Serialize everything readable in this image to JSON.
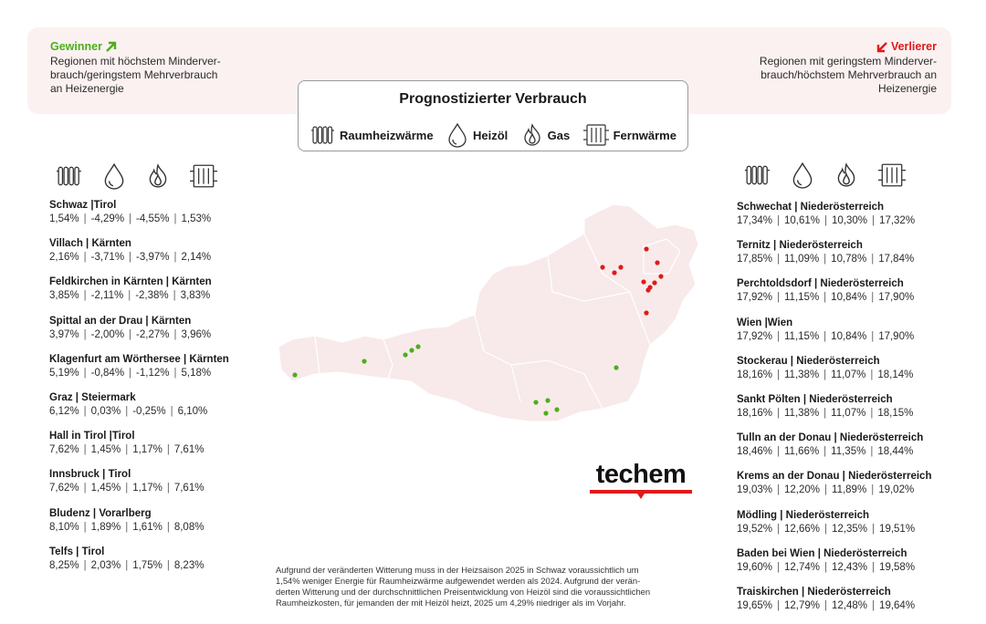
{
  "winner": {
    "title": "Gewinner",
    "description_lines": [
      "Regionen mit höchstem Minderver-",
      "brauch/geringstem Mehrverbrauch",
      "an Heizenergie"
    ]
  },
  "loser": {
    "title": "Verlierer",
    "description_lines": [
      "Regionen mit geringstem Minderver-",
      "brauch/höchstem Mehrverbrauch an",
      "Heizenergie"
    ]
  },
  "legend": {
    "title": "Prognostizierter Verbrauch",
    "items": [
      {
        "icon": "radiator-icon",
        "label": "Raumheizwärme"
      },
      {
        "icon": "oil-drop-icon",
        "label": "Heizöl"
      },
      {
        "icon": "gas-flame-icon",
        "label": "Gas"
      },
      {
        "icon": "district-heating-icon",
        "label": "Fernwärme"
      }
    ]
  },
  "colors": {
    "green": "#4caf1c",
    "red": "#e01a1a",
    "map_fill": "#f8eaea",
    "band": "#fbf1f1"
  },
  "winners_list": [
    {
      "name": "Schwaz |Tirol",
      "values": [
        "1,54%",
        "-4,29%",
        "-4,55%",
        "1,53%"
      ]
    },
    {
      "name": "Villach | Kärnten",
      "values": [
        "2,16%",
        "-3,71%",
        "-3,97%",
        "2,14%"
      ]
    },
    {
      "name": "Feldkirchen in Kärnten | Kärnten",
      "values": [
        "3,85%",
        "-2,11%",
        "-2,38%",
        "3,83%"
      ]
    },
    {
      "name": "Spittal an der Drau | Kärnten",
      "values": [
        "3,97%",
        "-2,00%",
        "-2,27%",
        "3,96%"
      ]
    },
    {
      "name": "Klagenfurt am Wörthersee | Kärnten",
      "values": [
        "5,19%",
        "-0,84%",
        "-1,12%",
        "5,18%"
      ]
    },
    {
      "name": "Graz | Steiermark",
      "values": [
        "6,12%",
        "0,03%",
        "-0,25%",
        "6,10%"
      ]
    },
    {
      "name": "Hall in Tirol |Tirol",
      "values": [
        "7,62%",
        "1,45%",
        "1,17%",
        "7,61%"
      ]
    },
    {
      "name": "Innsbruck | Tirol",
      "values": [
        "7,62%",
        "1,45%",
        "1,17%",
        "7,61%"
      ]
    },
    {
      "name": "Bludenz | Vorarlberg",
      "values": [
        "8,10%",
        "1,89%",
        "1,61%",
        "8,08%"
      ]
    },
    {
      "name": "Telfs | Tirol",
      "values": [
        "8,25%",
        "2,03%",
        "1,75%",
        "8,23%"
      ]
    }
  ],
  "losers_list": [
    {
      "name": "Schwechat | Niederösterreich",
      "values": [
        "17,34%",
        "10,61%",
        "10,30%",
        "17,32%"
      ]
    },
    {
      "name": "Ternitz | Niederösterreich",
      "values": [
        "17,85%",
        "11,09%",
        "10,78%",
        "17,84%"
      ]
    },
    {
      "name": "Perchtoldsdorf | Niederösterreich",
      "values": [
        "17,92%",
        "11,15%",
        "10,84%",
        "17,90%"
      ]
    },
    {
      "name": "Wien |Wien",
      "values": [
        "17,92%",
        "11,15%",
        "10,84%",
        "17,90%"
      ]
    },
    {
      "name": "Stockerau | Niederösterreich",
      "values": [
        "18,16%",
        "11,38%",
        "11,07%",
        "18,14%"
      ]
    },
    {
      "name": "Sankt Pölten | Niederösterreich",
      "values": [
        "18,16%",
        "11,38%",
        "11,07%",
        "18,15%"
      ]
    },
    {
      "name": "Tulln an der Donau | Niederösterreich",
      "values": [
        "18,46%",
        "11,66%",
        "11,35%",
        "18,44%"
      ]
    },
    {
      "name": "Krems an der Donau | Niederösterreich",
      "values": [
        "19,03%",
        "12,20%",
        "11,89%",
        "19,02%"
      ]
    },
    {
      "name": "Mödling | Niederösterreich",
      "values": [
        "19,52%",
        "12,66%",
        "12,35%",
        "19,51%"
      ]
    },
    {
      "name": "Baden bei Wien | Niederösterreich",
      "values": [
        "19,60%",
        "12,74%",
        "12,43%",
        "19,58%"
      ]
    },
    {
      "name": "Traiskirchen | Niederösterreich",
      "values": [
        "19,65%",
        "12,79%",
        "12,48%",
        "19,64%"
      ]
    }
  ],
  "logo": {
    "text": "techem"
  },
  "footnote": {
    "lines": [
      "Aufgrund der veränderten Witterung muss in der Heizsaison 2025 in Schwaz voraussichtlich um",
      "1,54% weniger Energie für Raumheizwärme aufgewendet werden als 2024. Aufgrund der verän-",
      "derten Witterung und der durchschnittlichen Preisentwicklung von Heizöl sind die voraussichtlichen",
      "Raumheizkosten, für jemanden der mit Heizöl heizt, 2025 um 4,29% niedriger als im Vorjahr."
    ]
  }
}
